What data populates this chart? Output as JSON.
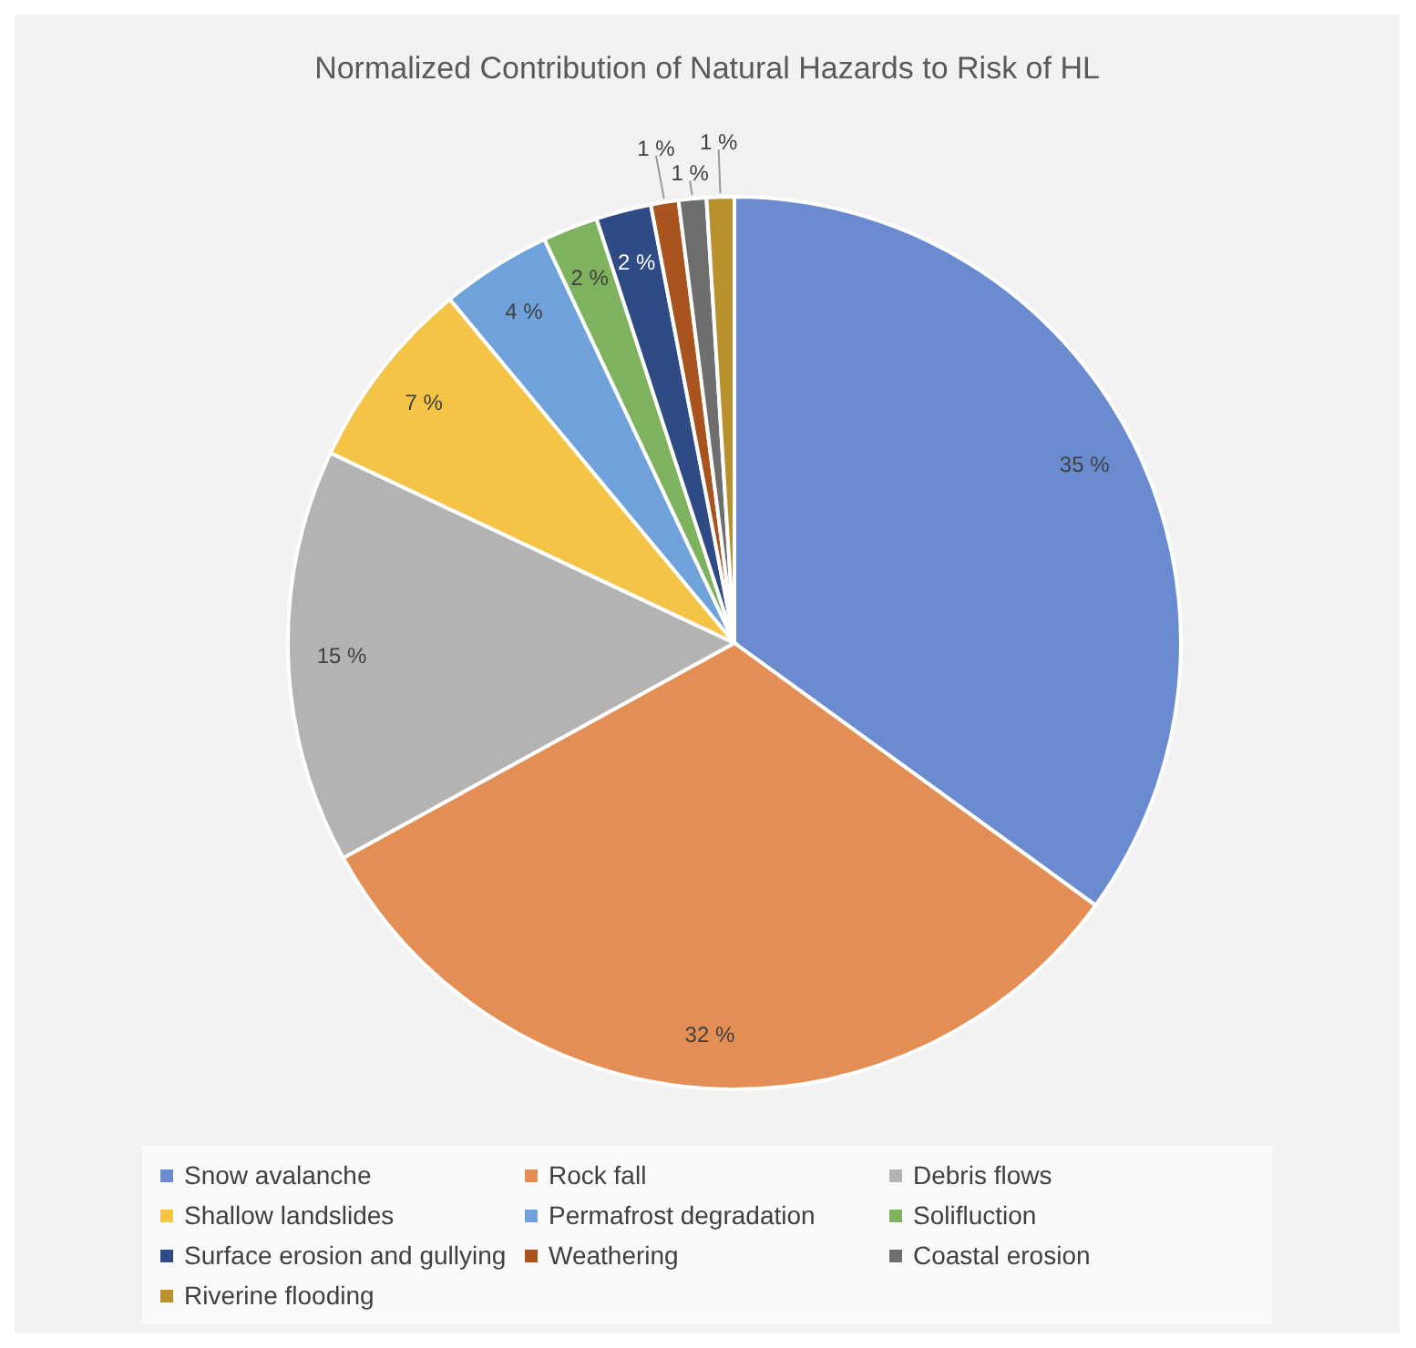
{
  "chart_data": {
    "type": "pie",
    "title": "Normalized Contribution of Natural Hazards to Risk of HL",
    "categories": [
      "Snow avalanche",
      "Rock fall",
      "Debris flows",
      "Shallow landslides",
      "Permafrost degradation",
      "Solifluction",
      "Surface erosion and gullying",
      "Weathering",
      "Coastal erosion",
      "Riverine flooding"
    ],
    "values": [
      35,
      32,
      15,
      7,
      4,
      2,
      2,
      1,
      1,
      1
    ],
    "colors": [
      "#6a8bcf",
      "#e28e54",
      "#b3b3b3",
      "#f5c447",
      "#6fa2da",
      "#7fb25f",
      "#2f4b86",
      "#a9531f",
      "#6e6e6e",
      "#b8912c"
    ],
    "value_labels": [
      "35 %",
      "32 %",
      "15 %",
      "7 %",
      "4 %",
      "2 %",
      "2 %",
      "1 %",
      "1 %",
      "1 %"
    ],
    "legend": "bottom"
  }
}
